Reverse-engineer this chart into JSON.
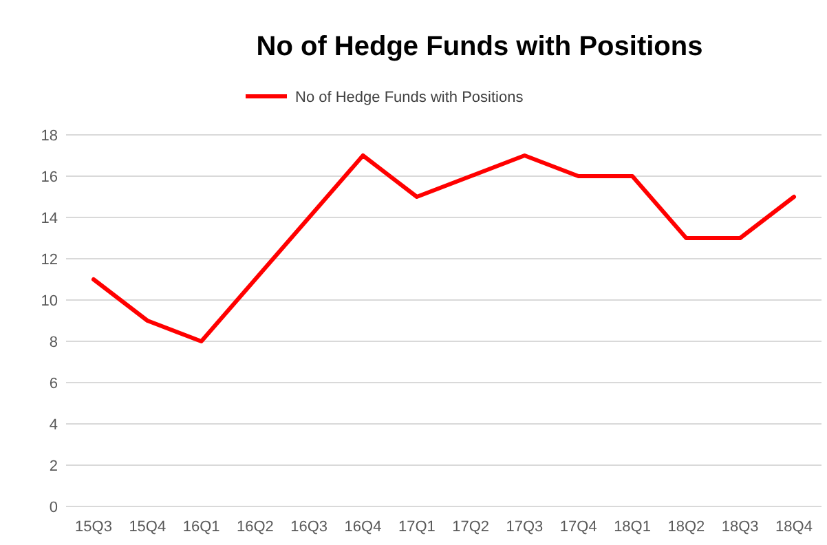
{
  "chart_data": {
    "type": "line",
    "title": "No of Hedge Funds with Positions",
    "categories": [
      "15Q3",
      "15Q4",
      "16Q1",
      "16Q2",
      "16Q3",
      "16Q4",
      "17Q1",
      "17Q2",
      "17Q3",
      "17Q4",
      "18Q1",
      "18Q2",
      "18Q3",
      "18Q4"
    ],
    "series": [
      {
        "name": "No of Hedge Funds with Positions",
        "color": "#ff0000",
        "values": [
          11,
          9,
          8,
          11,
          14,
          17,
          15,
          16,
          17,
          16,
          16,
          13,
          13,
          15
        ]
      }
    ],
    "ylim": [
      0,
      18
    ],
    "yticks": [
      0,
      2,
      4,
      6,
      8,
      10,
      12,
      14,
      16,
      18
    ],
    "grid": "y",
    "legend": "top",
    "marker": "none",
    "line_style": "solid"
  }
}
